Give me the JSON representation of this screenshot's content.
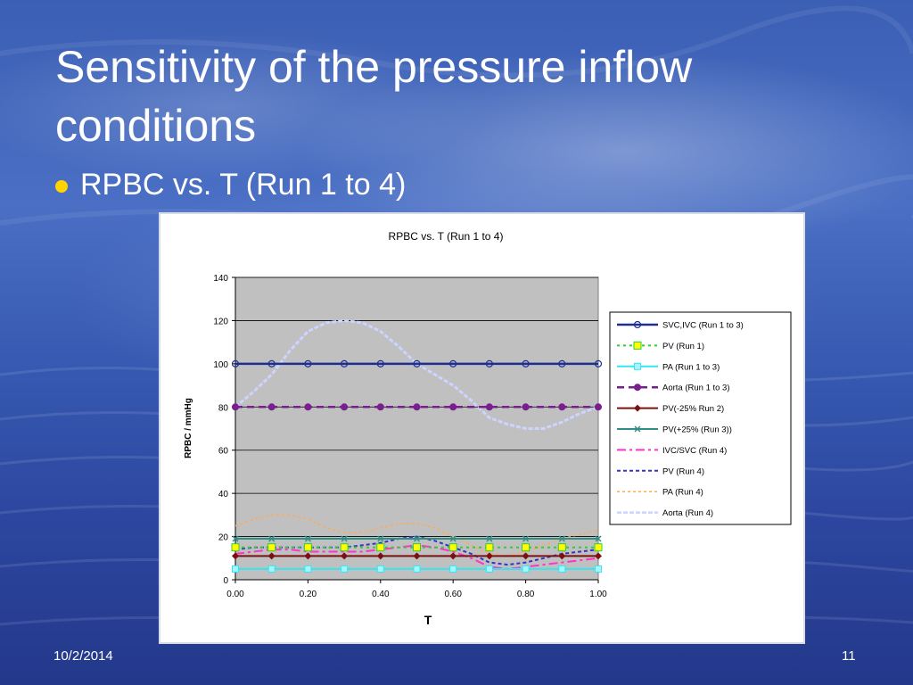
{
  "slide": {
    "title": "Sensitivity of the pressure inflow conditions",
    "bullet": "RPBC vs. T (Run 1 to 4)",
    "footer_date": "10/2/2014",
    "page_number": "11",
    "colors": {
      "background": "#3a5cb2",
      "bullet": "#ffd400",
      "text": "#ffffff"
    }
  },
  "chart_data": {
    "type": "line",
    "title": "RPBC vs. T (Run 1 to 4)",
    "xlabel": "T",
    "ylabel": "RPBC / mmHg",
    "xlim": [
      0,
      1
    ],
    "ylim": [
      0,
      140
    ],
    "xticks": [
      "0.00",
      "0.20",
      "0.40",
      "0.60",
      "0.80",
      "1.00"
    ],
    "yticks": [
      "0",
      "20",
      "40",
      "60",
      "80",
      "100",
      "120",
      "140"
    ],
    "grid": true,
    "legend_position": "right",
    "series": [
      {
        "name": "SVC,IVC (Run 1 to 3)",
        "color": "#1f2f8f",
        "dash": "",
        "width": 2.5,
        "marker": "circle-open",
        "x": [
          0,
          0.1,
          0.2,
          0.3,
          0.4,
          0.5,
          0.6,
          0.7,
          0.8,
          0.9,
          1.0
        ],
        "y": [
          100,
          100,
          100,
          100,
          100,
          100,
          100,
          100,
          100,
          100,
          100
        ]
      },
      {
        "name": "PV (Run 1)",
        "color": "#33cc33",
        "dash": "3,4",
        "width": 2,
        "marker": "square-yellow",
        "x": [
          0,
          0.1,
          0.2,
          0.3,
          0.4,
          0.5,
          0.6,
          0.7,
          0.8,
          0.9,
          1.0
        ],
        "y": [
          15,
          15,
          15,
          15,
          15,
          15,
          15,
          15,
          15,
          15,
          15
        ]
      },
      {
        "name": "PA (Run 1 to 3)",
        "color": "#33e6f0",
        "dash": "",
        "width": 2,
        "marker": "square-cyan",
        "x": [
          0,
          0.1,
          0.2,
          0.3,
          0.4,
          0.5,
          0.6,
          0.7,
          0.8,
          0.9,
          1.0
        ],
        "y": [
          5,
          5,
          5,
          5,
          5,
          5,
          5,
          5,
          5,
          5,
          5
        ]
      },
      {
        "name": "Aorta (Run 1 to 3)",
        "color": "#7a1f8f",
        "dash": "8,5",
        "width": 2.5,
        "marker": "circle-purple",
        "x": [
          0,
          0.1,
          0.2,
          0.3,
          0.4,
          0.5,
          0.6,
          0.7,
          0.8,
          0.9,
          1.0
        ],
        "y": [
          80,
          80,
          80,
          80,
          80,
          80,
          80,
          80,
          80,
          80,
          80
        ]
      },
      {
        "name": "PV(-25% Run 2)",
        "color": "#7a1010",
        "dash": "",
        "width": 2,
        "marker": "diamond",
        "x": [
          0,
          0.1,
          0.2,
          0.3,
          0.4,
          0.5,
          0.6,
          0.7,
          0.8,
          0.9,
          1.0
        ],
        "y": [
          11,
          11,
          11,
          11,
          11,
          11,
          11,
          11,
          11,
          11,
          11
        ]
      },
      {
        "name": "PV(+25% (Run 3))",
        "color": "#2f8f86",
        "dash": "",
        "width": 2,
        "marker": "x",
        "x": [
          0,
          0.1,
          0.2,
          0.3,
          0.4,
          0.5,
          0.6,
          0.7,
          0.8,
          0.9,
          1.0
        ],
        "y": [
          19,
          19,
          19,
          19,
          19,
          19,
          19,
          19,
          19,
          19,
          19
        ]
      },
      {
        "name": "IVC/SVC (Run 4)",
        "color": "#ff33cc",
        "dash": "10,4,3,4",
        "width": 2,
        "marker": "",
        "x": [
          0,
          0.05,
          0.1,
          0.15,
          0.2,
          0.25,
          0.3,
          0.35,
          0.4,
          0.45,
          0.5,
          0.55,
          0.6,
          0.65,
          0.7,
          0.75,
          0.8,
          0.85,
          0.9,
          0.95,
          1.0
        ],
        "y": [
          12,
          13,
          14,
          14,
          13,
          13,
          13,
          13,
          14,
          15,
          16,
          15,
          13,
          10,
          6,
          5,
          6,
          7,
          8,
          9,
          10
        ]
      },
      {
        "name": "PV (Run 4)",
        "color": "#3333cc",
        "dash": "4,3",
        "width": 2,
        "marker": "",
        "x": [
          0,
          0.05,
          0.1,
          0.15,
          0.2,
          0.25,
          0.3,
          0.35,
          0.4,
          0.45,
          0.5,
          0.55,
          0.6,
          0.65,
          0.7,
          0.75,
          0.8,
          0.85,
          0.9,
          0.95,
          1.0
        ],
        "y": [
          14,
          15,
          15,
          15,
          15,
          15,
          15,
          16,
          17,
          19,
          20,
          18,
          15,
          12,
          8,
          7,
          8,
          10,
          12,
          13,
          14
        ]
      },
      {
        "name": "PA (Run 4)",
        "color": "#ffaa55",
        "dash": "3,3",
        "width": 1.5,
        "marker": "",
        "x": [
          0,
          0.05,
          0.1,
          0.15,
          0.2,
          0.25,
          0.3,
          0.35,
          0.4,
          0.45,
          0.5,
          0.55,
          0.6,
          0.65,
          0.7,
          0.75,
          0.8,
          0.85,
          0.9,
          0.95,
          1.0
        ],
        "y": [
          25,
          28,
          30,
          30,
          28,
          24,
          22,
          22,
          24,
          26,
          26,
          24,
          20,
          16,
          12,
          11,
          13,
          16,
          19,
          21,
          23
        ]
      },
      {
        "name": "Aorta (Run 4)",
        "color": "#ccd4ff",
        "dash": "5,2",
        "width": 3,
        "marker": "",
        "x": [
          0,
          0.05,
          0.1,
          0.15,
          0.2,
          0.25,
          0.3,
          0.35,
          0.4,
          0.45,
          0.5,
          0.55,
          0.6,
          0.65,
          0.7,
          0.75,
          0.8,
          0.85,
          0.9,
          0.95,
          1.0
        ],
        "y": [
          80,
          87,
          95,
          106,
          115,
          119,
          120,
          119,
          115,
          108,
          100,
          95,
          90,
          83,
          75,
          72,
          70,
          70,
          73,
          77,
          80
        ]
      }
    ]
  }
}
